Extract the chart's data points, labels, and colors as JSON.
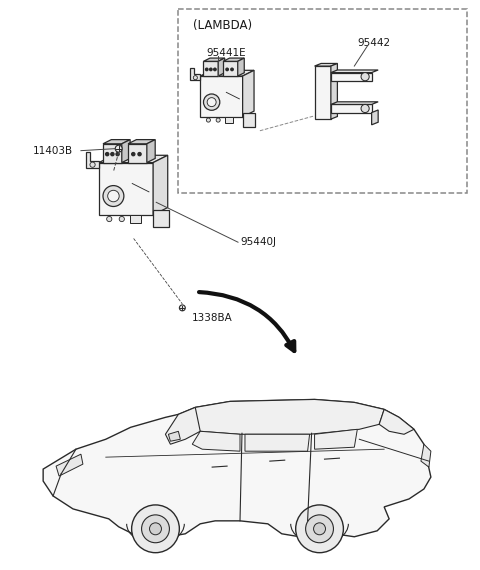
{
  "title": "",
  "background_color": "#ffffff",
  "fig_width": 4.8,
  "fig_height": 5.7,
  "dpi": 100,
  "labels": {
    "lambda_box": "(LAMBDA)",
    "part_95441E": "95441E",
    "part_95442": "95442",
    "part_95440J": "95440J",
    "part_11403B": "11403B",
    "part_1338BA": "1338BA"
  },
  "colors": {
    "outline": "#2a2a2a",
    "dashed_box": "#888888",
    "fill_light": "#f5f5f5",
    "fill_medium": "#e8e8e8",
    "arrow_fill": "#111111",
    "text": "#1a1a1a",
    "line": "#444444"
  },
  "font_sizes": {
    "label": 7.5,
    "lambda_label": 8.5
  }
}
